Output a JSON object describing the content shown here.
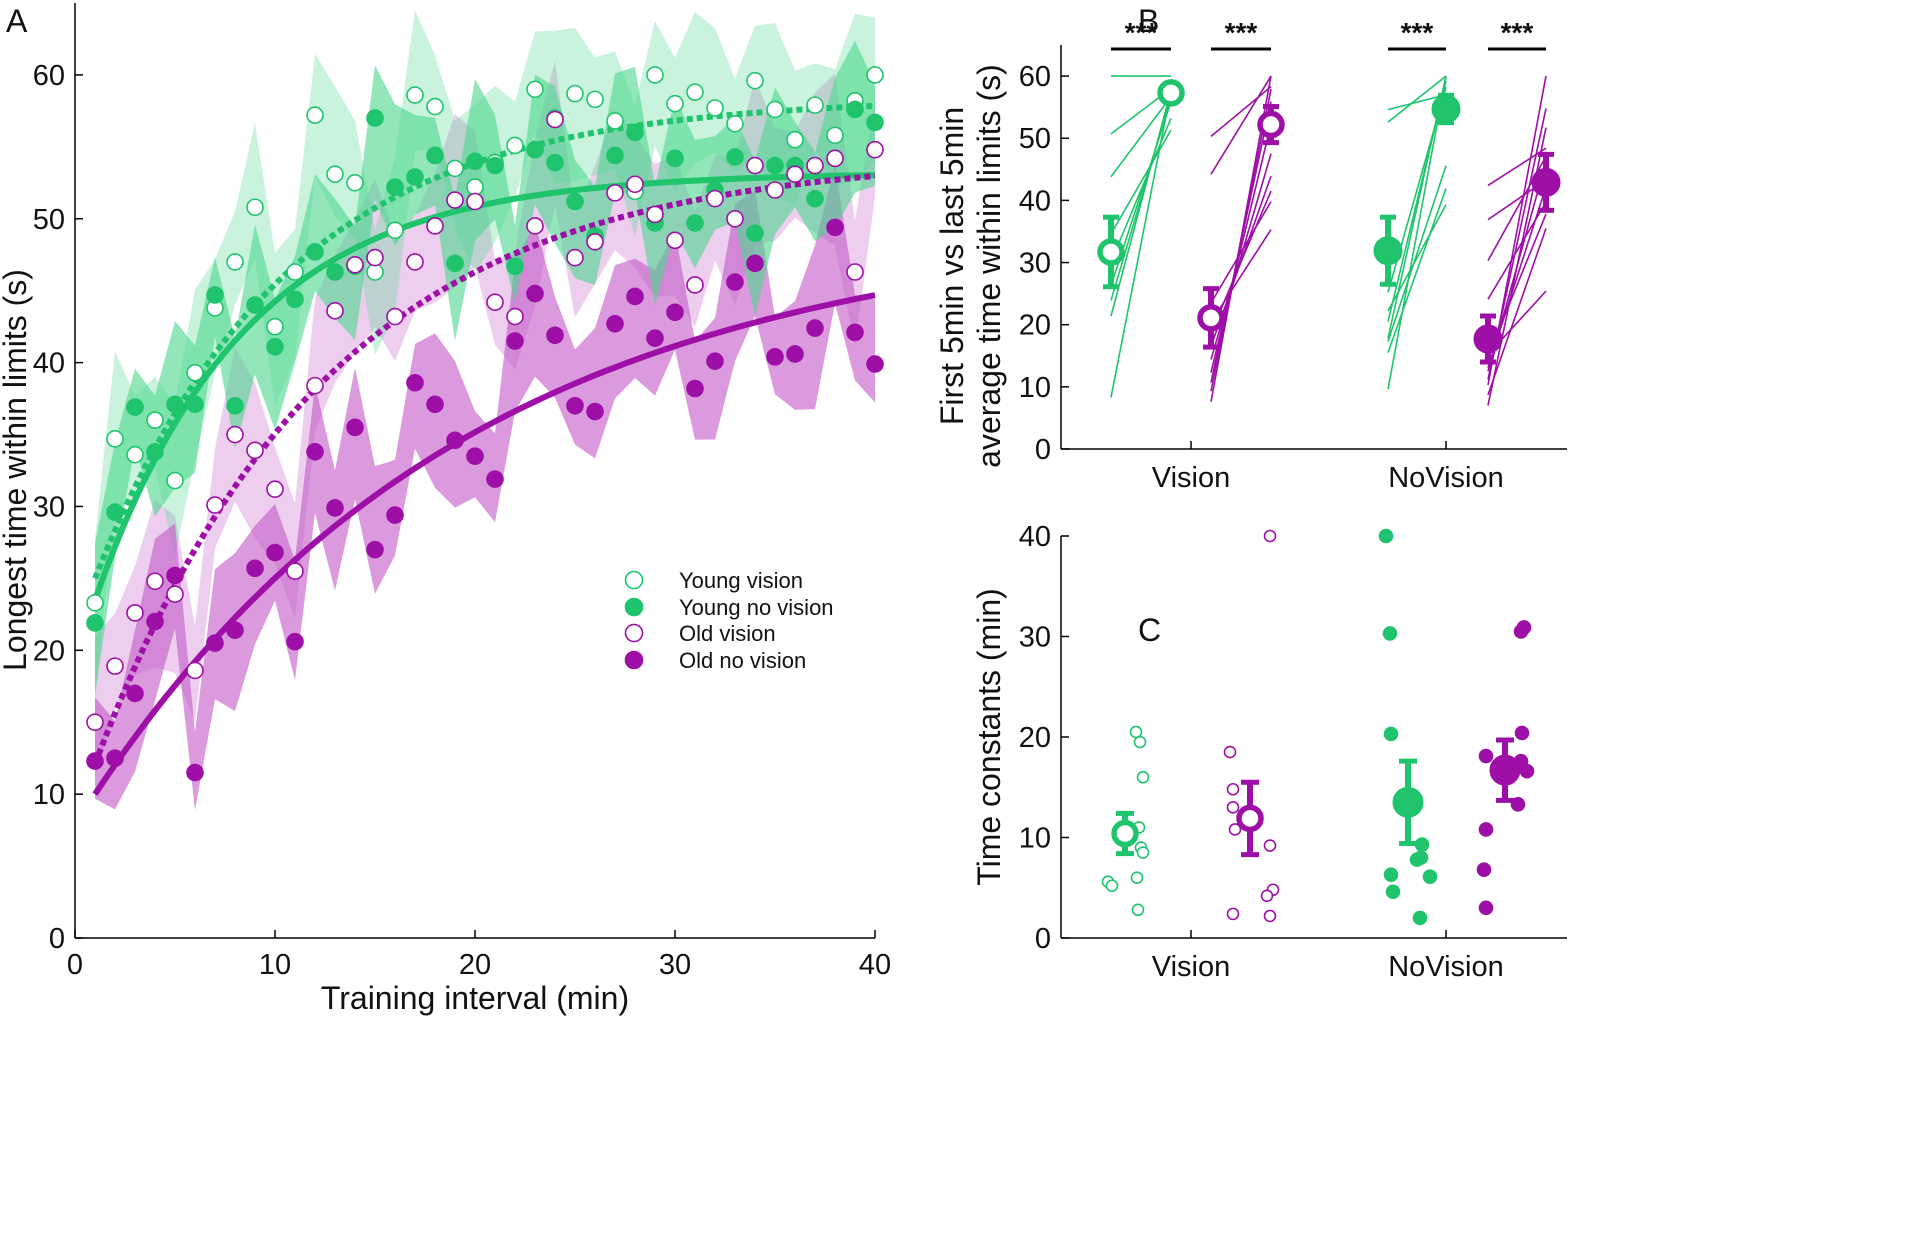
{
  "colors": {
    "green": "#1fc46d",
    "purple": "#9d0fa6",
    "green_fill": "#4fd690",
    "purple_fill": "#c35cc8"
  },
  "panels": {
    "a": "A",
    "b": "B",
    "c": "C"
  },
  "chart_data": [
    {
      "id": "A",
      "type": "scatter",
      "xlabel": "Training interval (min)",
      "ylabel": "Longest time within limits (s)",
      "xlim": [
        0,
        40
      ],
      "ylim": [
        0,
        65
      ],
      "xticks": [
        0,
        10,
        20,
        30,
        40
      ],
      "yticks": [
        0,
        10,
        20,
        30,
        40,
        50,
        60
      ],
      "x": [
        1,
        2,
        3,
        4,
        5,
        6,
        7,
        8,
        9,
        10,
        11,
        12,
        13,
        14,
        15,
        16,
        17,
        18,
        19,
        20,
        21,
        22,
        23,
        24,
        25,
        26,
        27,
        28,
        29,
        30,
        31,
        32,
        33,
        34,
        35,
        36,
        37,
        38,
        39,
        40
      ],
      "series": [
        {
          "name": "Young vision",
          "color": "green",
          "marker": "open",
          "fit": "dotted",
          "fit_params": {
            "a": 58.4,
            "b": 33.4,
            "tau": 9.5
          },
          "values": [
            23.3,
            34.7,
            33.6,
            36,
            31.8,
            39.3,
            43.8,
            47,
            50.8,
            42.5,
            46.3,
            57.2,
            53.1,
            52.5,
            46.3,
            49.2,
            58.6,
            57.8,
            53.5,
            52.2,
            53.9,
            55.1,
            59,
            57,
            58.7,
            58.3,
            56.8,
            51.9,
            60,
            58,
            58.8,
            57.7,
            56.6,
            59.6,
            57.6,
            55.5,
            57.9,
            55.8,
            58.2,
            60
          ]
        },
        {
          "name": "Young no vision",
          "color": "green",
          "marker": "filled",
          "fit": "solid",
          "fit_params": {
            "a": 53.2,
            "b": 29.7,
            "tau": 7.5
          },
          "values": [
            21.9,
            29.6,
            36.9,
            33.8,
            37.1,
            37.1,
            44.7,
            37,
            44,
            41.1,
            44.4,
            47.7,
            46.3,
            46.7,
            57,
            52.2,
            52.9,
            54.4,
            46.9,
            54,
            53.7,
            46.7,
            54.8,
            53.9,
            51.2,
            48.8,
            54.4,
            56,
            49.7,
            54.2,
            49.7,
            52,
            54.3,
            49,
            53.7,
            53.7,
            51.4,
            54.2,
            57.6,
            56.7
          ]
        },
        {
          "name": "Old vision",
          "color": "purple",
          "marker": "open",
          "fit": "dotted",
          "fit_params": {
            "a": 54.4,
            "b": 42.3,
            "tau": 11.5
          },
          "values": [
            15,
            18.9,
            22.6,
            24.8,
            23.9,
            18.6,
            30.1,
            35,
            33.9,
            31.2,
            25.5,
            38.4,
            43.6,
            46.8,
            47.3,
            43.2,
            47,
            49.5,
            51.3,
            51.2,
            44.2,
            43.2,
            49.5,
            56.9,
            47.3,
            48.4,
            51.8,
            52.4,
            50.3,
            48.5,
            45.4,
            51.4,
            50,
            53.7,
            52,
            53.1,
            53.7,
            54.2,
            46.3,
            54.8
          ]
        },
        {
          "name": "Old no vision",
          "color": "purple",
          "marker": "filled",
          "fit": "solid",
          "fit_params": {
            "a": 49.8,
            "b": 39.8,
            "tau": 19
          },
          "values": [
            12.3,
            12.5,
            17,
            22,
            25.2,
            11.5,
            20.5,
            21.4,
            25.7,
            26.8,
            20.6,
            33.8,
            29.9,
            35.5,
            27,
            29.4,
            38.6,
            37.1,
            34.6,
            33.5,
            31.9,
            41.5,
            44.8,
            41.9,
            37,
            36.6,
            42.7,
            44.6,
            41.7,
            43.5,
            38.2,
            40.1,
            45.6,
            46.9,
            40.4,
            40.6,
            42.4,
            49.4,
            42.1,
            39.9
          ]
        }
      ]
    },
    {
      "id": "B",
      "type": "line",
      "ylabel": "First 5min vs last 5min average time within limits (s)",
      "ylabel_lines": [
        "First 5min vs last 5min",
        "average time within limits (s)"
      ],
      "ylim": [
        0,
        65
      ],
      "yticks": [
        0,
        10,
        20,
        30,
        40,
        50,
        60
      ],
      "categories": [
        "Vision",
        "NoVision"
      ],
      "significance": [
        "***",
        "***",
        "***",
        "***"
      ],
      "groups": [
        {
          "name": "Young vision",
          "color": "green",
          "marker": "open",
          "first": {
            "mean": 31.7,
            "err": 5.6
          },
          "last": {
            "mean": 57.3,
            "err": 0.8
          }
        },
        {
          "name": "Old vision",
          "color": "purple",
          "marker": "open",
          "first": {
            "mean": 21.1,
            "err": 4.7
          },
          "last": {
            "mean": 52.2,
            "err": 2.9
          }
        },
        {
          "name": "Young no vision",
          "color": "green",
          "marker": "filled",
          "first": {
            "mean": 31.9,
            "err": 5.4
          },
          "last": {
            "mean": 54.7,
            "err": 2.2
          }
        },
        {
          "name": "Old no vision",
          "color": "purple",
          "marker": "filled",
          "first": {
            "mean": 17.7,
            "err": 3.7
          },
          "last": {
            "mean": 42.9,
            "err": 4.5
          }
        }
      ],
      "subjects": [
        {
          "group": "Young vision",
          "pairs": [
            [
              60,
              60
            ],
            [
              8.3,
              57.7
            ],
            [
              21.4,
              57.7
            ],
            [
              23.9,
              56.6
            ],
            [
              26.3,
              55.9
            ],
            [
              43.8,
              56.7
            ],
            [
              50.7,
              58
            ],
            [
              30.1,
              53.2
            ],
            [
              34.6,
              51.3
            ]
          ]
        },
        {
          "group": "Old vision",
          "pairs": [
            [
              7.6,
              60
            ],
            [
              9.3,
              57.9
            ],
            [
              10.7,
              55.9
            ],
            [
              12.3,
              52.3
            ],
            [
              14.4,
              47.5
            ],
            [
              16.5,
              43.9
            ],
            [
              44.2,
              60
            ],
            [
              50.3,
              58.3
            ],
            [
              18.7,
              41.5
            ],
            [
              20.4,
              35.3
            ],
            [
              23.5,
              39.8
            ]
          ]
        },
        {
          "group": "Young no vision",
          "pairs": [
            [
              9.6,
              60
            ],
            [
              17.8,
              60
            ],
            [
              20.5,
              59.2
            ],
            [
              25.2,
              58.2
            ],
            [
              52.6,
              60
            ],
            [
              54.6,
              57
            ],
            [
              15.5,
              41.9
            ],
            [
              22.2,
              39.3
            ],
            [
              17.3,
              45.6
            ]
          ]
        },
        {
          "group": "Old no vision",
          "pairs": [
            [
              7,
              51.7
            ],
            [
              10.3,
              60
            ],
            [
              11.2,
              54.8
            ],
            [
              12.5,
              46.2
            ],
            [
              13.1,
              42.2
            ],
            [
              14.9,
              37.8
            ],
            [
              24.1,
              39.7
            ],
            [
              30.3,
              47.1
            ],
            [
              36.9,
              43.3
            ],
            [
              42.4,
              48.4
            ],
            [
              15.2,
              25.4
            ],
            [
              8.7,
              35.5
            ]
          ]
        }
      ]
    },
    {
      "id": "C",
      "type": "scatter",
      "ylabel": "Time constants (min)",
      "ylim": [
        0,
        40
      ],
      "yticks": [
        0,
        10,
        20,
        30,
        40
      ],
      "categories": [
        "Vision",
        "NoVision"
      ],
      "groups": [
        {
          "name": "Young vision",
          "color": "green",
          "marker": "open",
          "mean": 10.4,
          "err": 2,
          "points": [
            5.6,
            5.2,
            20.5,
            19.5,
            16,
            11,
            9,
            8.5,
            6,
            2.8
          ]
        },
        {
          "name": "Old vision",
          "color": "purple",
          "marker": "open",
          "mean": 11.9,
          "err": 3.6,
          "points": [
            18.5,
            14.8,
            13,
            10.8,
            2.4,
            40,
            9.2,
            4.8,
            4.2,
            2.2
          ]
        },
        {
          "name": "Young no vision",
          "color": "green",
          "marker": "filled",
          "mean": 13.5,
          "err": 4.1,
          "points": [
            40,
            30.3,
            20.3,
            6.3,
            4.6,
            9.3,
            8,
            7.8,
            6.1,
            2
          ]
        },
        {
          "name": "Old no vision",
          "color": "purple",
          "marker": "filled",
          "mean": 16.7,
          "err": 3,
          "points": [
            18.1,
            10.8,
            6.8,
            3,
            30.5,
            30.9,
            20.4,
            17.6,
            16.6,
            13.3
          ]
        }
      ]
    }
  ]
}
